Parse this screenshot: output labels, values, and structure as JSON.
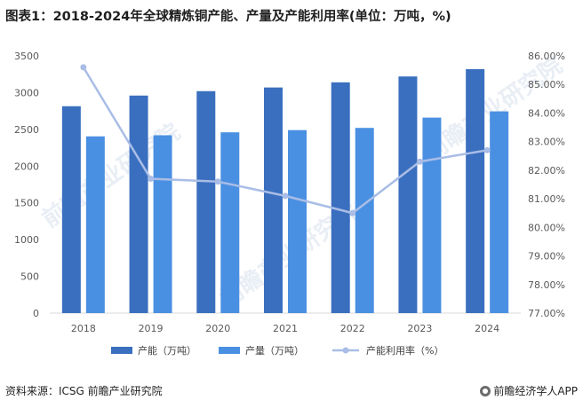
{
  "title": "图表1：2018-2024年全球精炼铜产能、产量及产能利用率(单位：万吨，%)",
  "chart_data": {
    "type": "bar",
    "categories": [
      "2018",
      "2019",
      "2020",
      "2021",
      "2022",
      "2023",
      "2024"
    ],
    "series": [
      {
        "name": "产能（万吨）",
        "type": "bar",
        "axis": "left",
        "color": "#3a6fbf",
        "values": [
          2815,
          2960,
          3020,
          3070,
          3140,
          3220,
          3320
        ]
      },
      {
        "name": "产量（万吨）",
        "type": "bar",
        "axis": "left",
        "color": "#4a90e2",
        "values": [
          2405,
          2420,
          2460,
          2490,
          2520,
          2660,
          2745
        ]
      },
      {
        "name": "产能利用率（%）",
        "type": "line",
        "axis": "right",
        "color": "#a9bde6",
        "values": [
          85.6,
          81.7,
          81.6,
          81.1,
          80.5,
          82.3,
          82.7
        ]
      }
    ],
    "left_axis": {
      "ylim": [
        0,
        3500
      ],
      "ticks": [
        "0",
        "500",
        "1000",
        "1500",
        "2000",
        "2500",
        "3000",
        "3500"
      ]
    },
    "right_axis": {
      "ylim": [
        77,
        86
      ],
      "ticks": [
        "77.00%",
        "78.00%",
        "79.00%",
        "80.00%",
        "81.00%",
        "82.00%",
        "83.00%",
        "84.00%",
        "85.00%",
        "86.00%"
      ]
    },
    "watermark": "前瞻产业研究院"
  },
  "footer": {
    "source": "资料来源：ICSG 前瞻产业研究院",
    "brand": "前瞻经济学人APP"
  }
}
